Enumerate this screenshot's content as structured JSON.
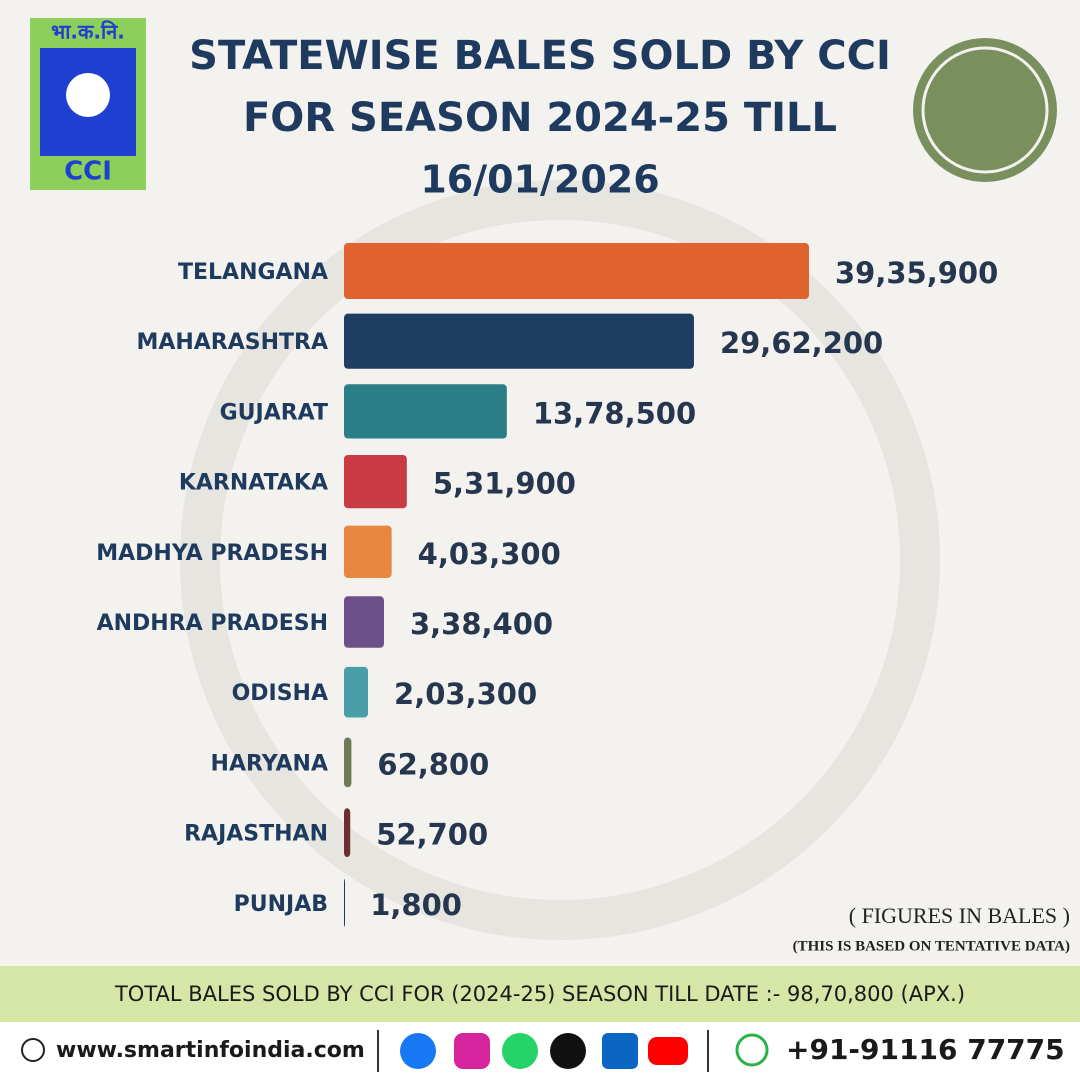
{
  "chart_data": {
    "type": "hbar",
    "title": "STATEWISE BALES SOLD BY CCI FOR SEASON 2024-25 TILL",
    "subtitle": "16/01/2026",
    "categories": [
      "TELANGANA",
      "MAHARASHTRA",
      "GUJARAT",
      "KARNATAKA",
      "MADHYA PRADESH",
      "ANDHRA PRADESH",
      "ODISHA",
      "HARYANA",
      "RAJASTHAN",
      "PUNJAB"
    ],
    "values": [
      3935900,
      2962200,
      1378500,
      531900,
      403300,
      338400,
      203300,
      62800,
      52700,
      1800
    ],
    "value_labels": [
      "39,35,900",
      "29,62,200",
      "13,78,500",
      "5,31,900",
      "4,03,300",
      "3,38,400",
      "2,03,300",
      "62,800",
      "52,700",
      "1,800"
    ],
    "colors": [
      "#e0622f",
      "#1e3d60",
      "#2a7f86",
      "#c93a45",
      "#e8873f",
      "#6d4f8a",
      "#4a9ea8",
      "#6f7a56",
      "#6b2f2f",
      "#1e3d60"
    ],
    "annotations": [
      "( FIGURES IN BALES )",
      "(THIS IS BASED ON TENTATIVE DATA)"
    ]
  },
  "logo": {
    "top": "भा.क.नि.",
    "bottom": "CCI"
  },
  "footer": {
    "total": "TOTAL BALES SOLD BY CCI FOR (2024-25) SEASON TILL DATE :- 98,70,800 (APX.)",
    "website": "www.smartinfoindia.com",
    "phone": "+91-91116 77775"
  }
}
